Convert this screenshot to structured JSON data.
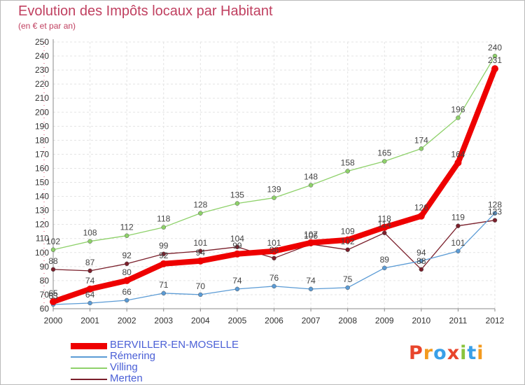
{
  "header": {
    "title": "Evolution des Impôts locaux par Habitant",
    "subtitle": "(en € et par an)"
  },
  "logo": {
    "text": "Proxiti",
    "colors": [
      "#e8452c",
      "#f39a1e",
      "#3aa0e8",
      "#e8452c",
      "#8ac43c",
      "#3aa0e8",
      "#f39a1e"
    ]
  },
  "chart_data": {
    "type": "line",
    "x": [
      "2000",
      "2001",
      "2002",
      "2003",
      "2004",
      "2005",
      "2006",
      "2007",
      "2008",
      "2009",
      "2010",
      "2011",
      "2012"
    ],
    "ylim": [
      60,
      250
    ],
    "yticks": [
      60,
      70,
      80,
      90,
      100,
      110,
      120,
      130,
      140,
      150,
      160,
      170,
      180,
      190,
      200,
      210,
      220,
      230,
      240,
      250
    ],
    "grid": true,
    "legend_position": "bottom-left",
    "series": [
      {
        "name": "BERVILLER-EN-MOSELLE",
        "color": "#ee0000",
        "values": [
          65,
          74,
          80,
          92,
          94,
          99,
          101,
          107,
          109,
          118,
          126,
          164,
          231
        ],
        "labels": [
          "65",
          "74",
          "80",
          "92",
          "94",
          "99",
          "101",
          "107",
          "109",
          "118",
          "126",
          "164",
          "231"
        ]
      },
      {
        "name": "Rémering",
        "color": "#5b9bd5",
        "values": [
          63,
          64,
          66,
          71,
          70,
          74,
          76,
          74,
          75,
          89,
          94,
          101,
          128
        ],
        "labels": [
          "63",
          "64",
          "66",
          "71",
          "70",
          "74",
          "76",
          "74",
          "75",
          "89",
          "94",
          "101",
          "128"
        ]
      },
      {
        "name": "Villing",
        "color": "#8ed16a",
        "values": [
          102,
          108,
          112,
          118,
          128,
          135,
          139,
          148,
          158,
          165,
          174,
          196,
          240
        ],
        "labels": [
          "102",
          "108",
          "112",
          "118",
          "128",
          "135",
          "139",
          "148",
          "158",
          "165",
          "174",
          "196",
          "240"
        ]
      },
      {
        "name": "Merten",
        "color": "#7a1f2b",
        "values": [
          88,
          87,
          92,
          99,
          101,
          104,
          96,
          106,
          102,
          114,
          88,
          119,
          123
        ],
        "labels": [
          "88",
          "87",
          "92",
          "99",
          "101",
          "104",
          "96",
          "106",
          "102",
          "114",
          "88",
          "119",
          "123"
        ]
      }
    ]
  }
}
